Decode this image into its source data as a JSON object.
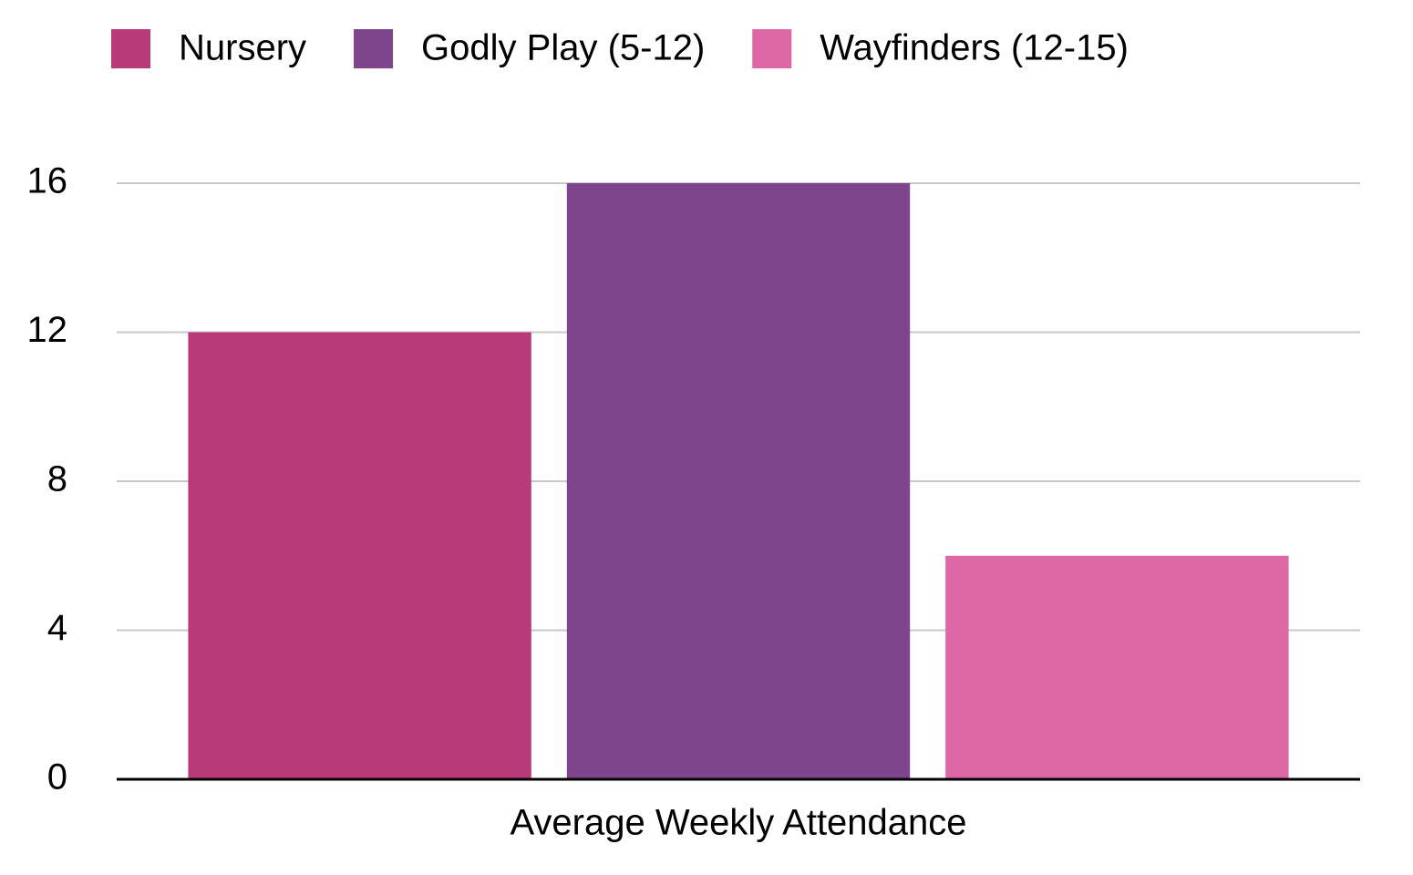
{
  "chart_data": {
    "type": "bar",
    "categories": [
      "Average Weekly Attendance"
    ],
    "series": [
      {
        "name": "Nursery",
        "color": "#b93a79",
        "values": [
          12
        ]
      },
      {
        "name": "Godly Play (5-12)",
        "color": "#7e448c",
        "values": [
          16
        ]
      },
      {
        "name": "Wayfinders (12-15)",
        "color": "#de68a5",
        "values": [
          6
        ]
      }
    ],
    "ylim": [
      0,
      16
    ],
    "yticks": [
      0,
      4,
      8,
      12,
      16
    ],
    "grid": true,
    "legend": "top"
  }
}
